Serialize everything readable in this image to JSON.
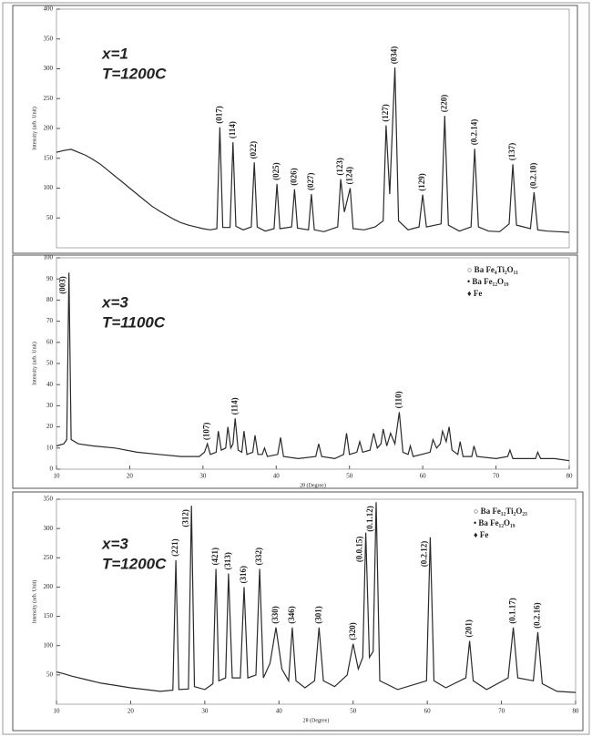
{
  "chart_data": [
    {
      "type": "line",
      "label_lines": [
        "x=1",
        "T=1200C"
      ],
      "ylabel": "Intensity (arb. Unit)",
      "color": "#2a2a2a",
      "xlim": [
        10,
        80
      ],
      "ylim": [
        0,
        400
      ],
      "yticks": [
        50,
        100,
        150,
        200,
        250,
        300,
        350,
        400
      ],
      "x": [
        10,
        11,
        12,
        13,
        14,
        15,
        16,
        17,
        18,
        19,
        20,
        21,
        22,
        23,
        24,
        25,
        26,
        27,
        28,
        29,
        30,
        31,
        31.9,
        32.3,
        32.7,
        33.7,
        34.1,
        34.5,
        35.5,
        36.6,
        37.0,
        37.4,
        38.5,
        39.7,
        40.1,
        40.5,
        42.1,
        42.5,
        42.9,
        44.4,
        44.8,
        45.2,
        46.5,
        48.4,
        48.8,
        49.3,
        50.1,
        50.5,
        52,
        53.5,
        54.6,
        55.0,
        55.5,
        56.2,
        56.7,
        58,
        59.5,
        60.0,
        60.5,
        62.5,
        63.0,
        63.5,
        65,
        66.6,
        67.1,
        67.6,
        69,
        70.5,
        71.8,
        72.3,
        72.8,
        74.7,
        75.2,
        75.7,
        77,
        78.5,
        80
      ],
      "values": [
        160,
        163,
        165,
        160,
        155,
        148,
        140,
        130,
        120,
        110,
        100,
        90,
        80,
        70,
        62,
        55,
        48,
        42,
        38,
        35,
        32,
        30,
        32,
        202,
        34,
        34,
        177,
        36,
        30,
        35,
        143,
        35,
        28,
        32,
        107,
        32,
        35,
        98,
        33,
        30,
        90,
        30,
        27,
        35,
        115,
        60,
        100,
        32,
        30,
        35,
        45,
        205,
        90,
        302,
        45,
        30,
        35,
        89,
        35,
        40,
        221,
        38,
        28,
        35,
        166,
        35,
        28,
        27,
        40,
        140,
        38,
        32,
        93,
        30,
        28,
        27,
        26
      ],
      "annotations": [
        {
          "text": "(017)",
          "x": 32.3,
          "y": 202
        },
        {
          "text": "(114)",
          "x": 34.1,
          "y": 177
        },
        {
          "text": "(022)",
          "x": 37.0,
          "y": 143
        },
        {
          "text": "(025)",
          "x": 40.1,
          "y": 107
        },
        {
          "text": "(026)",
          "x": 42.5,
          "y": 98
        },
        {
          "text": "(027)",
          "x": 44.8,
          "y": 90
        },
        {
          "text": "(123)",
          "x": 48.8,
          "y": 115
        },
        {
          "text": "(124)",
          "x": 50.1,
          "y": 100
        },
        {
          "text": "(127)",
          "x": 55.0,
          "y": 205
        },
        {
          "text": "(034)",
          "x": 56.2,
          "y": 302
        },
        {
          "text": "(129)",
          "x": 60.0,
          "y": 89
        },
        {
          "text": "(220)",
          "x": 63.0,
          "y": 221
        },
        {
          "text": "(0.2.14)",
          "x": 67.1,
          "y": 166
        },
        {
          "text": "(137)",
          "x": 72.3,
          "y": 140
        },
        {
          "text": "(0.2.10)",
          "x": 75.2,
          "y": 93
        }
      ]
    },
    {
      "type": "line",
      "label_lines": [
        "x=3",
        "T=1100C"
      ],
      "ylabel": "Intensity (arb. Unit)",
      "xlabel": "2θ (Degree)",
      "color": "#2a2a2a",
      "xlim": [
        10,
        80
      ],
      "ylim": [
        0,
        100
      ],
      "yticks": [
        0,
        10,
        20,
        30,
        40,
        50,
        60,
        70,
        80,
        90,
        100
      ],
      "xticks": [
        10,
        20,
        30,
        40,
        50,
        60,
        70,
        80
      ],
      "legend": [
        "○ Ba Fe₄Ti₂O₁₁",
        "• Ba Fe₁₂O₁₉",
        "♦ Fe"
      ],
      "x": [
        10,
        11,
        11.4,
        11.7,
        12.0,
        13,
        15,
        18,
        21,
        24,
        27,
        29.5,
        30.2,
        30.6,
        31,
        31.8,
        32.1,
        32.5,
        33.1,
        33.4,
        33.8,
        34.1,
        34.4,
        34.8,
        35.3,
        35.6,
        36,
        36.8,
        37.1,
        37.5,
        38.1,
        38.4,
        38.8,
        40.2,
        40.6,
        41,
        43,
        45.4,
        45.8,
        46.2,
        48,
        49.2,
        49.6,
        50,
        51,
        51.4,
        51.8,
        52.8,
        53.3,
        53.8,
        54.3,
        54.6,
        55.1,
        55.6,
        56.2,
        56.8,
        57.3,
        58,
        58.3,
        58.7,
        61,
        61.4,
        61.9,
        62.4,
        62.7,
        63.2,
        63.6,
        64,
        64.8,
        65.1,
        65.5,
        66.7,
        67,
        67.4,
        70,
        71.6,
        71.9,
        72.3,
        75.4,
        75.7,
        76.1,
        78,
        80
      ],
      "values": [
        11,
        12,
        14,
        93,
        14,
        12,
        11,
        10,
        8,
        7,
        6,
        6,
        8,
        12,
        7,
        8,
        18,
        9,
        10,
        20,
        10,
        12,
        24,
        9,
        8,
        18,
        7,
        8,
        16,
        7,
        7,
        10,
        6,
        7,
        15,
        6,
        5,
        6,
        12,
        6,
        5,
        7,
        17,
        7,
        8,
        13,
        8,
        9,
        17,
        10,
        12,
        19,
        11,
        17,
        12,
        27,
        8,
        7,
        11,
        6,
        8,
        14,
        10,
        12,
        18,
        13,
        20,
        9,
        7,
        13,
        6,
        6,
        11,
        6,
        5,
        6,
        9,
        5,
        5,
        8,
        5,
        5,
        4
      ],
      "annotations": [
        {
          "text": "(003)",
          "x": 11.7,
          "y": 93
        },
        {
          "text": "(107)",
          "x": 30.6,
          "y": 12
        },
        {
          "text": "(114)",
          "x": 34.4,
          "y": 24
        },
        {
          "text": "(110)",
          "x": 56.8,
          "y": 27
        }
      ]
    },
    {
      "type": "line",
      "label_lines": [
        "x=3",
        "T=1200C"
      ],
      "ylabel": "Intensity (arb. Unit)",
      "xlabel": "2θ (Degree)",
      "color": "#2a2a2a",
      "xlim": [
        10,
        80
      ],
      "ylim": [
        0,
        350
      ],
      "yticks": [
        50,
        100,
        150,
        200,
        250,
        300,
        350
      ],
      "xticks": [
        10,
        20,
        30,
        40,
        50,
        60,
        70,
        80
      ],
      "legend": [
        "○ Ba Fe₁₂Ti₂O₂₃",
        "• Ba Fe₁₂O₁₉",
        "♦ Fe"
      ],
      "x": [
        10,
        11,
        12,
        14,
        16,
        18,
        20,
        22,
        24,
        25.7,
        26.1,
        26.5,
        27.8,
        28.2,
        28.6,
        30,
        31.1,
        31.5,
        31.9,
        32.8,
        33.2,
        33.7,
        34.8,
        35.3,
        35.8,
        36.9,
        37.4,
        37.9,
        38.8,
        39.6,
        40.4,
        41.3,
        41.8,
        42.3,
        43.5,
        44.8,
        45.4,
        46,
        47.5,
        49.2,
        50,
        50.7,
        51.3,
        51.7,
        52.2,
        52.7,
        53.1,
        53.6,
        56,
        59.9,
        60.4,
        60.9,
        62.5,
        65.2,
        65.7,
        66.2,
        68,
        70.9,
        71.6,
        72.2,
        74.3,
        74.9,
        75.5,
        77.5,
        80
      ],
      "values": [
        55,
        52,
        48,
        42,
        36,
        32,
        28,
        25,
        22,
        24,
        246,
        25,
        26,
        339,
        30,
        25,
        35,
        231,
        40,
        45,
        223,
        45,
        45,
        200,
        45,
        50,
        231,
        45,
        70,
        131,
        60,
        40,
        131,
        40,
        28,
        40,
        131,
        40,
        30,
        50,
        103,
        60,
        80,
        293,
        80,
        90,
        345,
        40,
        25,
        40,
        285,
        40,
        28,
        45,
        108,
        40,
        25,
        45,
        131,
        45,
        40,
        123,
        35,
        22,
        20
      ],
      "annotations": [
        {
          "text": "(221)",
          "x": 26.1,
          "y": 246
        },
        {
          "text": "(312)",
          "x": 28.2,
          "y": 339
        },
        {
          "text": "(421)",
          "x": 31.5,
          "y": 231
        },
        {
          "text": "(313)",
          "x": 33.2,
          "y": 223
        },
        {
          "text": "(316)",
          "x": 35.3,
          "y": 200
        },
        {
          "text": "(332)",
          "x": 37.4,
          "y": 231
        },
        {
          "text": "(330)",
          "x": 39.6,
          "y": 131
        },
        {
          "text": "(346)",
          "x": 41.8,
          "y": 131
        },
        {
          "text": "(301)",
          "x": 45.4,
          "y": 131
        },
        {
          "text": "(320)",
          "x": 50.0,
          "y": 103
        },
        {
          "text": "(0.0.15)",
          "x": 51.7,
          "y": 293
        },
        {
          "text": "(0.1.12)",
          "x": 53.1,
          "y": 345
        },
        {
          "text": "(0.2.12)",
          "x": 60.4,
          "y": 285
        },
        {
          "text": "(201)",
          "x": 65.7,
          "y": 108
        },
        {
          "text": "(0.1.17)",
          "x": 71.6,
          "y": 131
        },
        {
          "text": "(0.2.16)",
          "x": 74.9,
          "y": 123
        }
      ]
    }
  ]
}
